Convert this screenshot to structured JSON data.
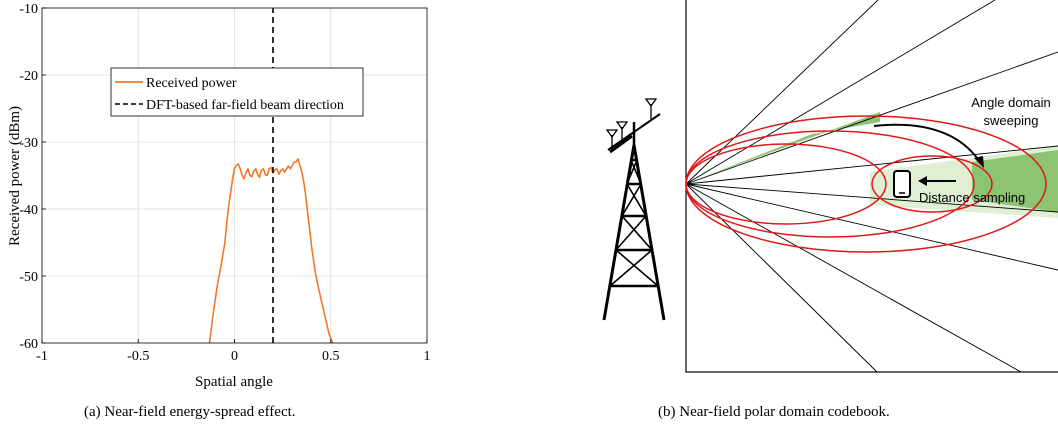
{
  "chart_data": {
    "type": "line",
    "xlabel": "Spatial angle",
    "ylabel": "Received power (dBm)",
    "xlim": [
      -1,
      1
    ],
    "ylim": [
      -60,
      -10
    ],
    "xticks": [
      -1,
      -0.5,
      0,
      0.5,
      1
    ],
    "xtick_labels": [
      "-1",
      "-0.5",
      "0",
      "0.5",
      "1"
    ],
    "yticks": [
      -10,
      -20,
      -30,
      -40,
      -50,
      -60
    ],
    "ytick_labels": [
      "-10",
      "-20",
      "-30",
      "-40",
      "-50",
      "-60"
    ],
    "grid": true,
    "legend_position": "upper-left",
    "series": [
      {
        "name": "Received power",
        "color": "#f07a2a",
        "style": "solid",
        "x": [
          -0.13,
          -0.11,
          -0.09,
          -0.07,
          -0.05,
          -0.04,
          -0.03,
          -0.02,
          -0.01,
          0.0,
          0.01,
          0.02,
          0.03,
          0.04,
          0.05,
          0.06,
          0.07,
          0.08,
          0.09,
          0.1,
          0.11,
          0.12,
          0.13,
          0.14,
          0.15,
          0.16,
          0.17,
          0.18,
          0.19,
          0.2,
          0.21,
          0.22,
          0.23,
          0.24,
          0.25,
          0.26,
          0.27,
          0.28,
          0.29,
          0.3,
          0.31,
          0.32,
          0.33,
          0.34,
          0.35,
          0.36,
          0.37,
          0.38,
          0.39,
          0.4,
          0.41,
          0.42,
          0.43,
          0.45,
          0.47,
          0.49,
          0.51
        ],
        "y": [
          -60,
          -55.5,
          -51.5,
          -48.5,
          -45,
          -42,
          -39.5,
          -37.5,
          -35.5,
          -34,
          -33.5,
          -33.3,
          -34,
          -35,
          -35.5,
          -34.5,
          -34,
          -35,
          -35.2,
          -34.3,
          -34,
          -34.8,
          -35.3,
          -34.2,
          -34,
          -34.9,
          -35,
          -34,
          -33.8,
          -34.6,
          -34.2,
          -34,
          -34.8,
          -34.3,
          -34,
          -34.5,
          -34,
          -33.6,
          -34,
          -33.5,
          -33,
          -33,
          -32.5,
          -33.5,
          -34.5,
          -36,
          -38,
          -40.5,
          -43,
          -45.5,
          -47.5,
          -49.5,
          -51,
          -53.5,
          -56,
          -58.5,
          -60
        ]
      },
      {
        "name": "DFT-based far-field beam direction",
        "color": "#000000",
        "style": "dashed",
        "x": [
          0.2,
          0.2
        ],
        "y": [
          -60,
          -10
        ]
      }
    ]
  },
  "polar_figure": {
    "annotation_angle": "Angle domain",
    "annotation_angle_line2": "sweeping",
    "annotation_distance": "Distance sampling",
    "colors": {
      "ring": "#e01818",
      "sector": "#8cc474",
      "sector_light": "#e0efd4",
      "line": "#000000"
    }
  },
  "captions": {
    "a": "(a) Near-field energy-spread effect.",
    "b": "(b) Near-field polar domain codebook."
  }
}
